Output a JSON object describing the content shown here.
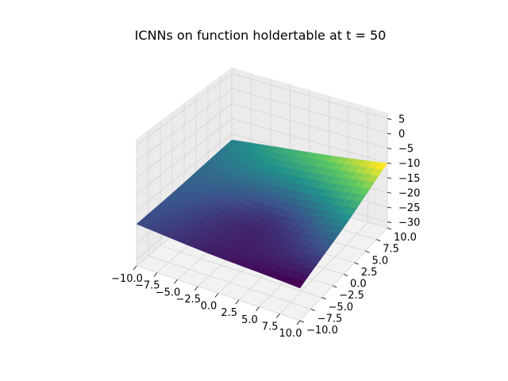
{
  "chart_data": {
    "type": "surface3d",
    "title": "ICNNs on function holdertable at t = 50",
    "xlabel": "",
    "ylabel": "",
    "zlabel": "",
    "x_range": [
      -10,
      10
    ],
    "y_range": [
      -10,
      10
    ],
    "z_range": [
      -32,
      7
    ],
    "x_ticks": [
      "−10.0",
      "−7.5",
      "−5.0",
      "−2.5",
      "0.0",
      "2.5",
      "5.0",
      "7.5",
      "10.0"
    ],
    "y_ticks": [
      "−10.0",
      "−7.5",
      "−5.0",
      "−2.5",
      "0.0",
      "2.5",
      "5.0",
      "7.5",
      "10.0"
    ],
    "z_ticks": [
      "−30",
      "−25",
      "−20",
      "−15",
      "−10",
      "−5",
      "0",
      "5"
    ],
    "grid": true,
    "colormap": "viridis",
    "surface": {
      "description": "Near-planar surface with a shallow fold; values increase toward the x = 10, y = 10 corner",
      "corner_values": {
        "x_min_y_min": -19,
        "x_max_y_min": -22,
        "x_min_y_max": -17,
        "x_max_y_max": -10
      },
      "fold_center_value": -22
    }
  },
  "colors": {
    "pane_side": "#ebebeb",
    "pane_floor": "#f2f2f2",
    "grid": "#d4d4d4",
    "surface_low": "#440154",
    "surface_mid": "#21918c",
    "surface_high": "#fde725"
  }
}
